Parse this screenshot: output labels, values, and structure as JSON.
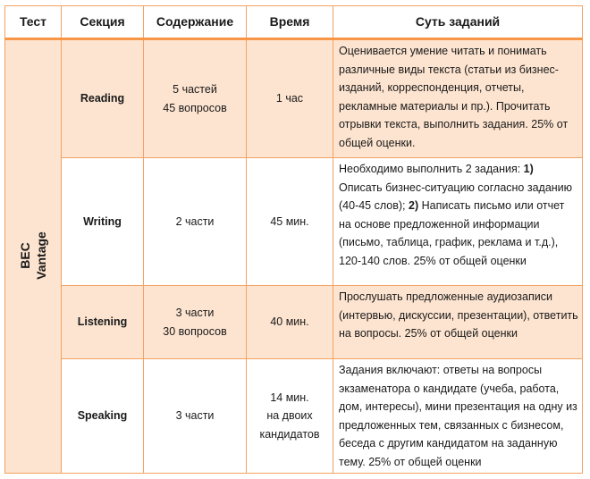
{
  "colors": {
    "border": "#f79646",
    "fill": "#fde4d0"
  },
  "headers": [
    "Тест",
    "Секция",
    "Содержание",
    "Время",
    "Суть заданий"
  ],
  "test": {
    "line1": "BEC",
    "line2": "Vantage"
  },
  "rows": [
    {
      "section": "Reading",
      "content1": "5 частей",
      "content2": "45 вопросов",
      "time1": "1 час",
      "time2": "",
      "desc": "Оценивается умение читать и понимать различные виды текста (статьи из бизнес-изданий, корреспонденция, отчеты, рекламные материалы и пр.). Прочитать отрывки текста, выполнить задания. 25% от общей оценки."
    },
    {
      "section": "Writing",
      "content1": "2 части",
      "content2": "",
      "time1": "45 мин.",
      "time2": "",
      "desc_a": "Необходимо выполнить 2 задания: ",
      "desc_b": "1)",
      "desc_c": " Описать бизнес-ситуацию согласно заданию (40-45 слов); ",
      "desc_d": "2)",
      "desc_e": " Написать письмо или отчет на основе предложенной информации (письмо, таблица, график, реклама и т.д.), 120-140 слов. 25% от общей оценки"
    },
    {
      "section": "Listening",
      "content1": "3 части",
      "content2": "30 вопросов",
      "time1": "40 мин.",
      "time2": "",
      "desc": "Прослушать предложенные аудиозаписи (интервью, дискуссии, презентации), ответить на вопросы. 25% от общей оценки"
    },
    {
      "section": "Speaking",
      "content1": "3 части",
      "content2": "",
      "time1": "14 мин.",
      "time2": "на двоих кандидатов",
      "desc": "Задания включают: ответы на вопросы экзаменатора о кандидате (учеба, работа, дом, интересы), мини презентация на одну из предложенных тем, связанных с бизнесом, беседа с другим кандидатом на заданную тему. 25% от общей оценки"
    }
  ]
}
